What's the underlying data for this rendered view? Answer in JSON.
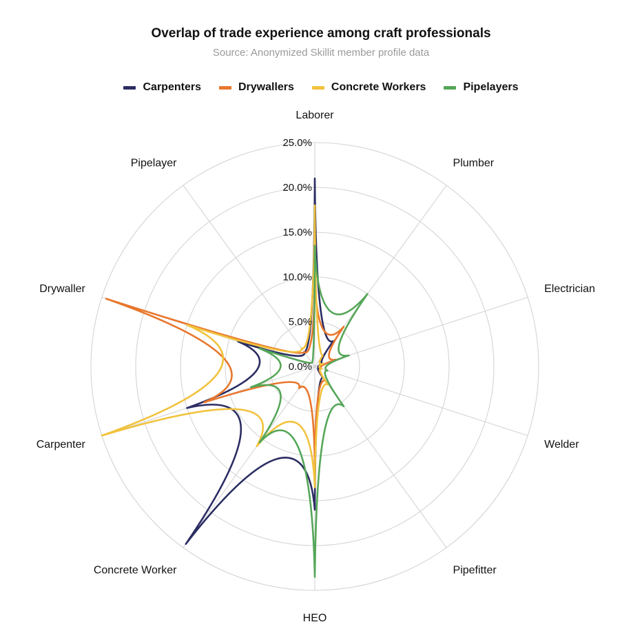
{
  "chart_data": {
    "type": "radar",
    "title": "Overlap of trade experience among craft professionals",
    "subtitle": "Source: Anonymized Skillit member profile data",
    "categories": [
      "Laborer",
      "Plumber",
      "Electrician",
      "Welder",
      "Pipefitter",
      "HEO",
      "Concrete Worker",
      "Carpenter",
      "Drywaller",
      "Pipelayer"
    ],
    "radial_ticks": [
      "0.0%",
      "5.0%",
      "10.0%",
      "15.0%",
      "20.0%",
      "25.0%"
    ],
    "rlim": [
      0,
      25
    ],
    "grid": true,
    "legend_position": "top",
    "series": [
      {
        "name": "Carpenters",
        "color": "#2b2d62",
        "values": [
          21.0,
          3.5,
          1.0,
          0.5,
          1.5,
          16.0,
          24.5,
          15.0,
          9.0,
          2.0
        ]
      },
      {
        "name": "Drywallers",
        "color": "#e8772e",
        "values": [
          10.0,
          5.5,
          2.5,
          0.8,
          2.0,
          11.0,
          3.0,
          13.0,
          24.5,
          2.0
        ]
      },
      {
        "name": "Concrete Workers",
        "color": "#f1c23c",
        "values": [
          18.0,
          1.5,
          1.0,
          0.8,
          2.5,
          13.5,
          11.0,
          25.0,
          15.0,
          2.5
        ]
      },
      {
        "name": "Pipelayers",
        "color": "#55a658",
        "values": [
          13.5,
          10.0,
          4.0,
          1.5,
          5.5,
          23.5,
          10.5,
          7.5,
          6.5,
          0.5
        ]
      }
    ]
  }
}
